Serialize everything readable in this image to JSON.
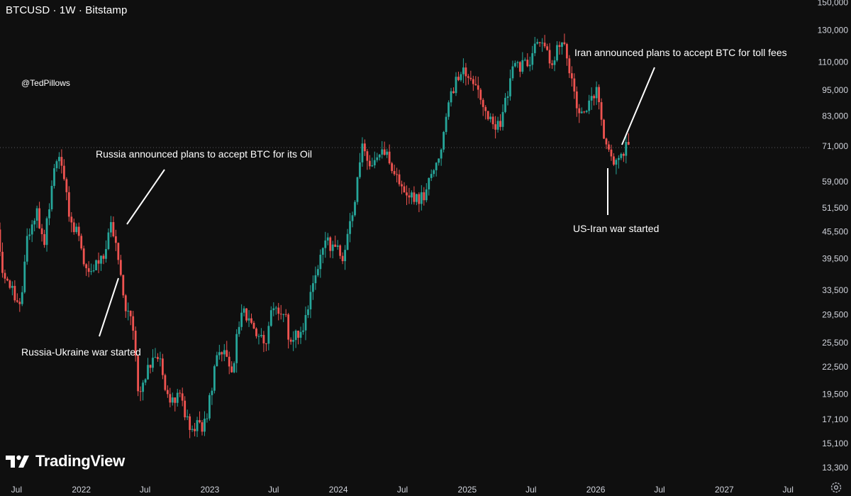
{
  "header": {
    "symbol_title": "BTCUSD · 1W · Bitstamp"
  },
  "watermark": {
    "handle": "@TedPillows",
    "brand": "TradingView"
  },
  "colors": {
    "background": "#0f0f0f",
    "up": "#26a69a",
    "down": "#ef5350",
    "annotation": "#ffffff",
    "axis_text": "#d1d4dc"
  },
  "icons": {
    "brand_logo": "tradingview-logo-icon",
    "settings": "gear-icon"
  },
  "chart_data": {
    "type": "candlestick",
    "title": "BTCUSD · 1W · Bitstamp",
    "y_scale": "log",
    "ylim": [
      12500,
      152000
    ],
    "xlim": [
      "2021-05-15",
      "2027-09-01"
    ],
    "y_ticks": [
      "150,000",
      "130,000",
      "110,000",
      "95,000",
      "83,000",
      "71,000",
      "59,000",
      "51,500",
      "45,500",
      "39,500",
      "33,500",
      "29,500",
      "25,500",
      "22,500",
      "19,500",
      "17,100",
      "15,100",
      "13,300"
    ],
    "x_ticks": [
      {
        "label": "Jul",
        "date": "2021-07-01"
      },
      {
        "label": "2022",
        "date": "2022-01-01"
      },
      {
        "label": "Jul",
        "date": "2022-07-01"
      },
      {
        "label": "2023",
        "date": "2023-01-01"
      },
      {
        "label": "Jul",
        "date": "2023-07-01"
      },
      {
        "label": "2024",
        "date": "2024-01-01"
      },
      {
        "label": "Jul",
        "date": "2024-07-01"
      },
      {
        "label": "2025",
        "date": "2025-01-01"
      },
      {
        "label": "Jul",
        "date": "2025-07-01"
      },
      {
        "label": "2026",
        "date": "2026-01-01"
      },
      {
        "label": "Jul",
        "date": "2026-07-01"
      },
      {
        "label": "2027",
        "date": "2027-01-01"
      },
      {
        "label": "Jul",
        "date": "2027-07-01"
      }
    ],
    "reference_line": {
      "value": 71000,
      "style": "dotted"
    },
    "close_path": [
      [
        "2021-05-15",
        46000
      ],
      [
        "2021-06-01",
        36000
      ],
      [
        "2021-06-20",
        34000
      ],
      [
        "2021-07-20",
        30500
      ],
      [
        "2021-08-10",
        45500
      ],
      [
        "2021-09-05",
        50000
      ],
      [
        "2021-09-25",
        43000
      ],
      [
        "2021-10-20",
        62000
      ],
      [
        "2021-11-10",
        66000
      ],
      [
        "2021-12-05",
        50000
      ],
      [
        "2022-01-05",
        43000
      ],
      [
        "2022-01-25",
        36500
      ],
      [
        "2022-02-20",
        38500
      ],
      [
        "2022-03-10",
        39000
      ],
      [
        "2022-04-02",
        46500
      ],
      [
        "2022-04-25",
        39500
      ],
      [
        "2022-05-12",
        30000
      ],
      [
        "2022-06-01",
        29800
      ],
      [
        "2022-06-18",
        19500
      ],
      [
        "2022-07-20",
        23000
      ],
      [
        "2022-08-15",
        24000
      ],
      [
        "2022-09-10",
        19000
      ],
      [
        "2022-10-15",
        19500
      ],
      [
        "2022-11-10",
        16500
      ],
      [
        "2022-12-25",
        16600
      ],
      [
        "2023-01-25",
        23000
      ],
      [
        "2023-02-20",
        24500
      ],
      [
        "2023-03-12",
        21000
      ],
      [
        "2023-03-30",
        28000
      ],
      [
        "2023-04-15",
        30000
      ],
      [
        "2023-05-20",
        27000
      ],
      [
        "2023-06-15",
        25000
      ],
      [
        "2023-07-05",
        30500
      ],
      [
        "2023-08-10",
        29500
      ],
      [
        "2023-08-20",
        26000
      ],
      [
        "2023-10-01",
        27500
      ],
      [
        "2023-10-25",
        34500
      ],
      [
        "2023-12-05",
        43000
      ],
      [
        "2024-01-22",
        40000
      ],
      [
        "2024-02-20",
        52000
      ],
      [
        "2024-03-14",
        71000
      ],
      [
        "2024-04-15",
        64000
      ],
      [
        "2024-05-20",
        69000
      ],
      [
        "2024-07-05",
        56000
      ],
      [
        "2024-08-05",
        54000
      ],
      [
        "2024-09-05",
        54500
      ],
      [
        "2024-10-20",
        68000
      ],
      [
        "2024-11-20",
        92000
      ],
      [
        "2024-12-15",
        104000
      ],
      [
        "2025-01-20",
        103000
      ],
      [
        "2025-02-25",
        84000
      ],
      [
        "2025-04-08",
        78000
      ],
      [
        "2025-05-20",
        107000
      ],
      [
        "2025-07-01",
        108000
      ],
      [
        "2025-07-15",
        119000
      ],
      [
        "2025-08-12",
        121000
      ],
      [
        "2025-09-01",
        110000
      ],
      [
        "2025-10-06",
        123000
      ],
      [
        "2025-10-20",
        111000
      ],
      [
        "2025-11-20",
        86000
      ],
      [
        "2025-12-20",
        87500
      ],
      [
        "2026-01-12",
        94000
      ],
      [
        "2026-02-06",
        70000
      ],
      [
        "2026-02-25",
        65000
      ],
      [
        "2026-03-25",
        69000
      ],
      [
        "2026-04-10",
        72000
      ]
    ],
    "annotations": [
      {
        "text": "Russia-Ukraine war started",
        "date": "2022-02-24"
      },
      {
        "text": "Russia announced plans to accept BTC for its Oil",
        "date": "2022-04-02"
      },
      {
        "text": "Iran announced plans to accept BTC for toll fees",
        "date": "2026-04-10"
      },
      {
        "text": "US-Iran war started",
        "date": "2026-02-28"
      }
    ]
  }
}
